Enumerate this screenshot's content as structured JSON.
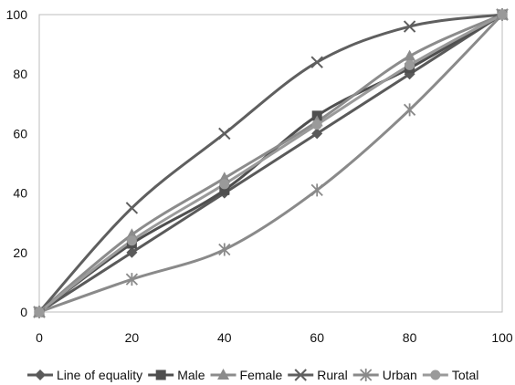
{
  "chart_data": {
    "type": "line",
    "title": "",
    "xlabel": "",
    "ylabel": "",
    "xlim": [
      0,
      100
    ],
    "ylim": [
      0,
      100
    ],
    "x_ticks": [
      0,
      20,
      40,
      60,
      80,
      100
    ],
    "y_ticks": [
      0,
      20,
      40,
      60,
      80,
      100
    ],
    "grid": false,
    "legend_position": "bottom",
    "x": [
      0,
      20,
      40,
      60,
      80,
      100
    ],
    "series": [
      {
        "name": "Line of equality",
        "values": [
          0,
          20,
          40,
          60,
          80,
          100
        ],
        "marker": "diamond",
        "color": "#5a5a5a"
      },
      {
        "name": "Male",
        "values": [
          0,
          23,
          41,
          66,
          82,
          100
        ],
        "marker": "square",
        "color": "#4f4f4f"
      },
      {
        "name": "Female",
        "values": [
          0,
          26,
          45,
          64,
          86,
          100
        ],
        "marker": "triangle",
        "color": "#8c8c8c"
      },
      {
        "name": "Rural",
        "values": [
          0,
          35,
          60,
          84,
          96,
          100
        ],
        "marker": "x",
        "color": "#5f5f5f"
      },
      {
        "name": "Urban",
        "values": [
          0,
          11,
          21,
          41,
          68,
          100
        ],
        "marker": "star",
        "color": "#8a8a8a"
      },
      {
        "name": "Total",
        "values": [
          0,
          24,
          43,
          63,
          83,
          100
        ],
        "marker": "circle",
        "color": "#9a9a9a"
      }
    ]
  }
}
